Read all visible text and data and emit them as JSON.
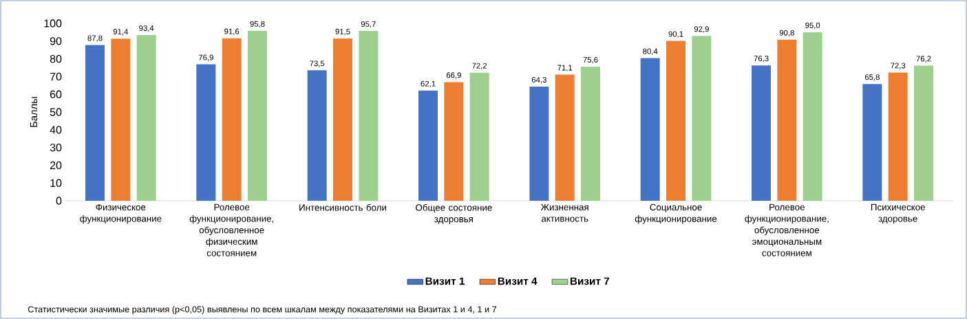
{
  "chart_data": {
    "type": "bar",
    "ylabel": "Баллы",
    "categories": [
      "Физическое функционирование",
      "Ролевое функционирование, обусловленное физическим состоянием",
      "Интенсивность боли",
      "Общее состояние здоровья",
      "Жизненная активность",
      "Социальное функционирование",
      "Ролевое функционирование, обусловленное эмоциональным состоянием",
      "Психическое здоровье"
    ],
    "series": [
      {
        "name": "Визит 1",
        "color": "#4472c4",
        "values": [
          87.8,
          76.9,
          73.5,
          62.1,
          64.3,
          80.4,
          76.3,
          65.8
        ],
        "value_labels": [
          "87,8",
          "76,9",
          "73,5",
          "62,1",
          "64,3",
          "80,4",
          "76,3",
          "65,8"
        ]
      },
      {
        "name": "Визит 4",
        "color": "#ed7d31",
        "values": [
          91.4,
          91.6,
          91.5,
          66.9,
          71.1,
          90.1,
          90.8,
          72.3
        ],
        "value_labels": [
          "91,4",
          "91,6",
          "91,5",
          "66,9",
          "71,1",
          "90,1",
          "90,8",
          "72,3"
        ]
      },
      {
        "name": "Визит 7",
        "color": "#9dd08e",
        "values": [
          93.4,
          95.8,
          95.7,
          72.2,
          75.6,
          92.9,
          95.0,
          76.2
        ],
        "value_labels": [
          "93,4",
          "95,8",
          "95,7",
          "72,2",
          "75,6",
          "92,9",
          "95,0",
          "76,2"
        ]
      }
    ],
    "ylim": [
      0,
      100
    ],
    "yticks": [
      0,
      10,
      20,
      30,
      40,
      50,
      60,
      70,
      80,
      90,
      100
    ],
    "grid": false,
    "legend": "bottom",
    "annotations": [
      "Статистически значимые различия (p<0,05) выявлены по всем шкалам между показателями на Визитах 1 и 4, 1 и 7"
    ]
  }
}
